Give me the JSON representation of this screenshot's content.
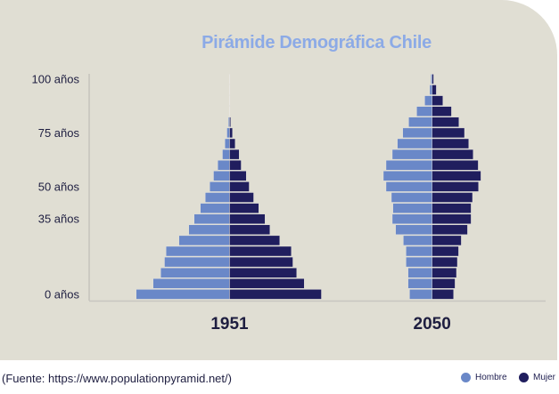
{
  "chart_data": {
    "type": "bar",
    "subtype": "population-pyramid",
    "title": "Pirámide Demográfica Chile",
    "units": "relative (unlabeled scale)",
    "age_groups": [
      "0",
      "5",
      "10",
      "15",
      "20",
      "25",
      "30",
      "35",
      "40",
      "45",
      "50",
      "55",
      "60",
      "65",
      "70",
      "75",
      "80",
      "85",
      "90",
      "95",
      "100"
    ],
    "ytick_labels": [
      {
        "age_index": 0,
        "label": "0 años"
      },
      {
        "age_index": 7,
        "label": "35 años"
      },
      {
        "age_index": 10,
        "label": "50 años"
      },
      {
        "age_index": 15,
        "label": "75 años"
      },
      {
        "age_index": 20,
        "label": "100 años"
      }
    ],
    "pyramids": [
      {
        "year": "1951",
        "series": [
          {
            "name": "Hombre",
            "values": [
              104.7,
              85.7,
              77.3,
              73,
              71.3,
              56.7,
              45.7,
              39.7,
              32.7,
              27.3,
              22.3,
              18,
              13.3,
              8,
              5.3,
              3,
              1.3,
              0.3,
              0.3,
              0.3,
              0.3
            ]
          },
          {
            "name": "Mujer",
            "values": [
              103,
              83.7,
              75.3,
              71,
              69.3,
              56.3,
              45.3,
              39.7,
              32.7,
              27,
              22,
              18.7,
              13,
              10.7,
              6.3,
              3.3,
              1.3,
              0.3,
              0.3,
              0.3,
              0.3
            ]
          }
        ]
      },
      {
        "year": "2050",
        "series": [
          {
            "name": "Hombre",
            "values": [
              25.3,
              27,
              27,
              29.3,
              29.3,
              32.3,
              41,
              44.7,
              44,
              45.7,
              51.7,
              54.7,
              51.7,
              44.7,
              39,
              33,
              26.3,
              17.3,
              8.3,
              2.7,
              1.3
            ]
          },
          {
            "name": "Mujer",
            "values": [
              24,
              25.7,
              27.3,
              28.3,
              29.7,
              32.7,
              39.7,
              43.7,
              43.7,
              45.3,
              52,
              54.7,
              51.7,
              46,
              41,
              36.3,
              30,
              21.7,
              12,
              4.7,
              1.7
            ]
          }
        ]
      }
    ],
    "legend": [
      {
        "name": "Hombre",
        "color": "#6a88c8"
      },
      {
        "name": "Mujer",
        "color": "#201e5e"
      }
    ],
    "legend_placement": "bottom-right"
  },
  "source": "(Fuente: https://www.populationpyramid.net/)"
}
